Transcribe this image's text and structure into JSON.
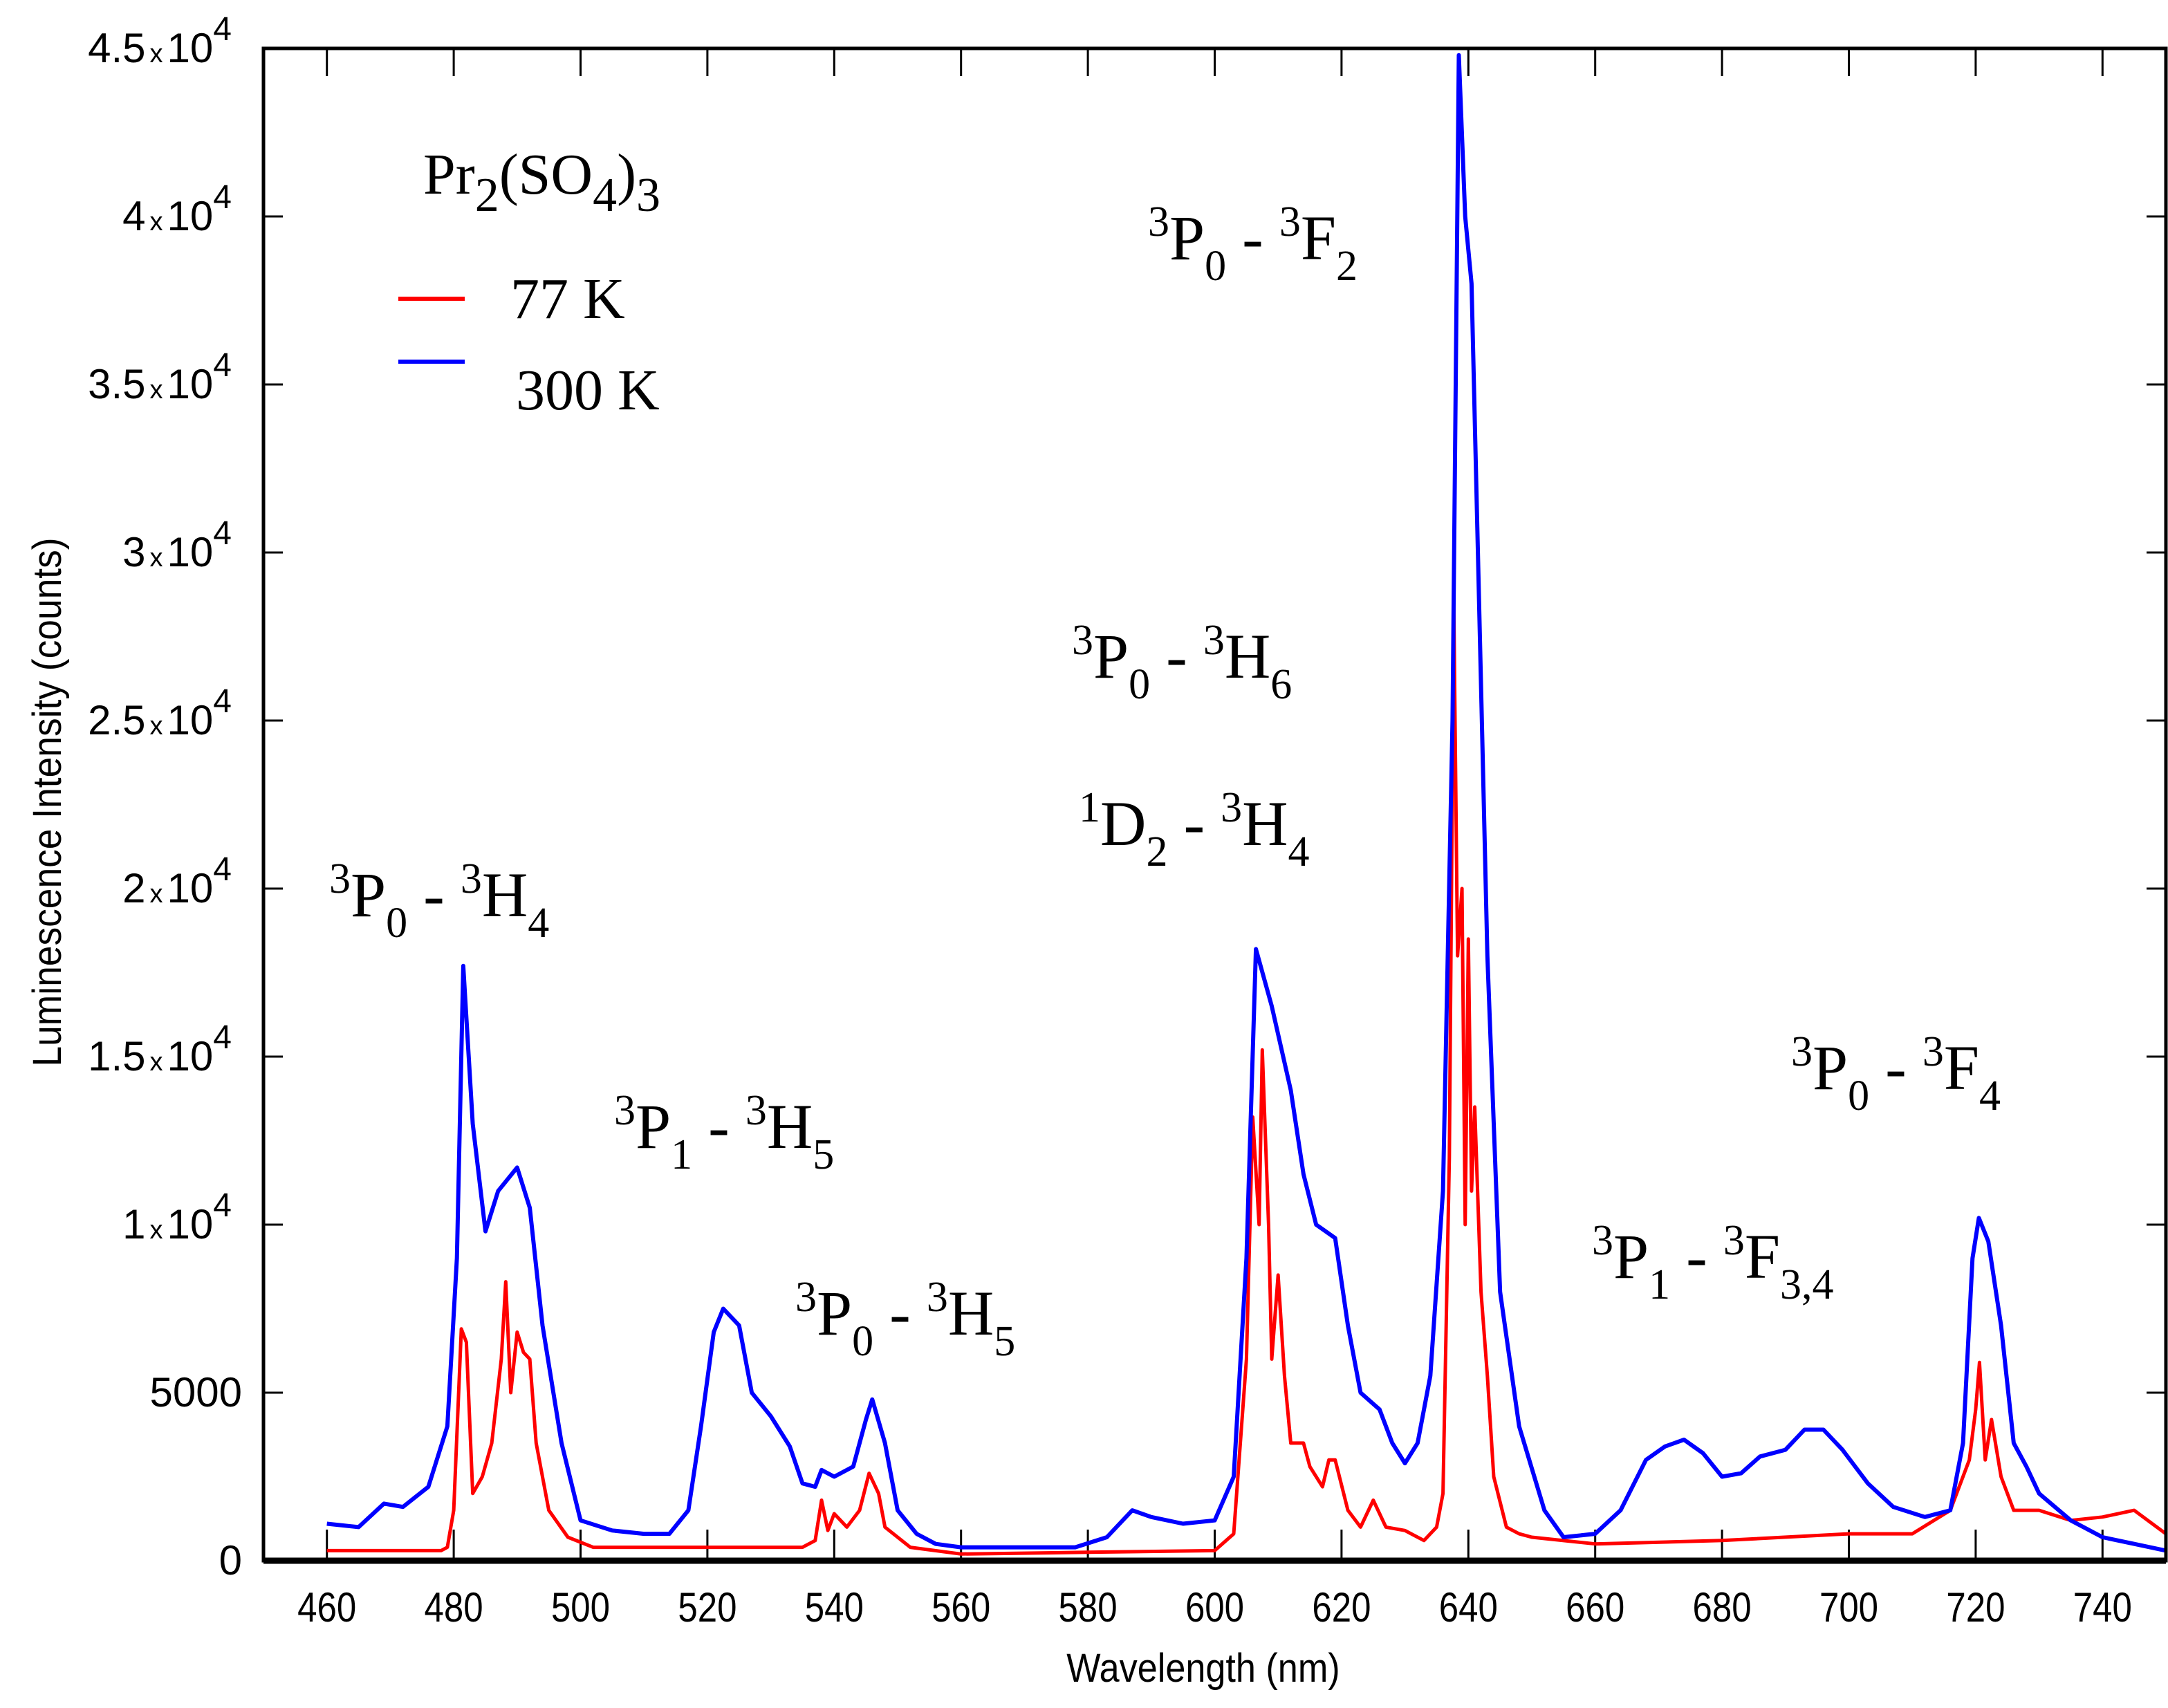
{
  "chart_data": {
    "type": "line",
    "title": "",
    "xlabel": "Wavelength (nm)",
    "ylabel": "Luminescence Intensity (counts)",
    "xlim": [
      450,
      750
    ],
    "ylim": [
      0,
      45000
    ],
    "grid": false,
    "x_ticks": [
      460,
      480,
      500,
      520,
      540,
      560,
      580,
      600,
      620,
      640,
      660,
      680,
      700,
      720,
      740
    ],
    "x_tick_labels": [
      "460",
      "480",
      "500",
      "520",
      "540",
      "560",
      "580",
      "600",
      "620",
      "640",
      "660",
      "680",
      "700",
      "720",
      "740"
    ],
    "y_ticks": [
      0,
      5000,
      10000,
      15000,
      20000,
      25000,
      30000,
      35000,
      40000,
      45000
    ],
    "y_tick_labels": [
      {
        "m": "0"
      },
      {
        "m": "5000"
      },
      {
        "m": "1",
        "x": "x",
        "base": "10",
        "exp": "4"
      },
      {
        "m": "1.5",
        "x": "x",
        "base": "10",
        "exp": "4"
      },
      {
        "m": "2",
        "x": "x",
        "base": "10",
        "exp": "4"
      },
      {
        "m": "2.5",
        "x": "x",
        "base": "10",
        "exp": "4"
      },
      {
        "m": "3",
        "x": "x",
        "base": "10",
        "exp": "4"
      },
      {
        "m": "3.5",
        "x": "x",
        "base": "10",
        "exp": "4"
      },
      {
        "m": "4",
        "x": "x",
        "base": "10",
        "exp": "4"
      },
      {
        "m": "4.5",
        "x": "x",
        "base": "10",
        "exp": "4"
      }
    ],
    "legend": {
      "placement": "top-left",
      "title": {
        "a": "Pr",
        "b": "2",
        "c": "(SO",
        "d": "4",
        "e": ")",
        "f": "3"
      },
      "entries": [
        {
          "name": "77 K",
          "color": "#ff0000"
        },
        {
          "name": "300 K",
          "color": "#0000ff"
        }
      ]
    },
    "series": [
      {
        "name": "300 K",
        "color": "#0000ff",
        "x": [
          460,
          465,
          469,
          472,
          476,
          479,
          480.5,
          481.5,
          483,
          485,
          487,
          490,
          492,
          494,
          497,
          500,
          505,
          510,
          514,
          517,
          519,
          521,
          522.5,
          525,
          527,
          530,
          533,
          535,
          537,
          538,
          540,
          543,
          545,
          546,
          548,
          550,
          553,
          556,
          560,
          570,
          578,
          583,
          587,
          590,
          595,
          600,
          603,
          605,
          606.5,
          609,
          612,
          614,
          616,
          619,
          621,
          623,
          626,
          628,
          630,
          632,
          634,
          636,
          637.5,
          638.5,
          639.5,
          640.5,
          641.5,
          643,
          645,
          648,
          652,
          655,
          660,
          664,
          668,
          671,
          674,
          677,
          680,
          683,
          686,
          690,
          693,
          696,
          699,
          703,
          707,
          712,
          716,
          718,
          719.5,
          720.5,
          722,
          724,
          726,
          728,
          730,
          735,
          740,
          745,
          750
        ],
        "y": [
          1100,
          1000,
          1700,
          1600,
          2200,
          4000,
          9000,
          17700,
          13000,
          9800,
          11000,
          11700,
          10500,
          7000,
          3500,
          1200,
          900,
          800,
          800,
          1500,
          4000,
          6800,
          7500,
          7000,
          5000,
          4300,
          3400,
          2300,
          2200,
          2700,
          2500,
          2800,
          4200,
          4800,
          3500,
          1500,
          800,
          500,
          400,
          400,
          400,
          700,
          1500,
          1300,
          1100,
          1200,
          2500,
          9000,
          18200,
          16500,
          14000,
          11500,
          10000,
          9600,
          7000,
          5000,
          4500,
          3500,
          2900,
          3500,
          5500,
          11000,
          25000,
          44800,
          40000,
          38000,
          30000,
          18000,
          8000,
          4000,
          1500,
          700,
          800,
          1500,
          3000,
          3400,
          3600,
          3200,
          2500,
          2600,
          3100,
          3300,
          3900,
          3900,
          3300,
          2300,
          1600,
          1300,
          1500,
          3500,
          9000,
          10200,
          9500,
          7000,
          3500,
          2800,
          2000,
          1200,
          700,
          500,
          300
        ]
      },
      {
        "name": "77 K",
        "color": "#ff0000",
        "x": [
          460,
          470,
          478,
          479,
          480,
          481.2,
          482,
          483,
          484.5,
          486,
          487.5,
          488.2,
          489,
          490,
          491,
          492,
          493,
          495,
          498,
          502,
          520,
          535,
          537,
          538,
          539,
          540,
          542,
          544,
          545.5,
          547,
          548,
          552,
          560,
          580,
          600,
          603,
          605,
          606,
          607,
          607.5,
          608.5,
          609,
          610,
          611,
          612,
          614,
          615,
          617,
          618,
          619,
          621,
          623,
          625,
          627,
          630,
          633,
          635,
          636,
          637,
          637.7,
          638.3,
          639,
          639.5,
          640,
          640.5,
          641,
          642,
          643,
          644,
          646,
          648,
          650,
          660,
          680,
          700,
          710,
          716,
          719,
          720,
          720.6,
          721.5,
          722.5,
          724,
          726,
          730,
          735,
          740,
          745,
          750
        ],
        "y": [
          300,
          300,
          300,
          400,
          1500,
          6900,
          6500,
          2000,
          2500,
          3500,
          6000,
          8300,
          5000,
          6800,
          6200,
          6000,
          3500,
          1500,
          700,
          400,
          400,
          400,
          600,
          1800,
          900,
          1400,
          1000,
          1500,
          2600,
          2000,
          1000,
          400,
          200,
          250,
          300,
          800,
          6000,
          13200,
          10000,
          15200,
          10000,
          6000,
          8500,
          5500,
          3500,
          3500,
          2800,
          2200,
          3000,
          3000,
          1500,
          1000,
          1800,
          1000,
          900,
          600,
          1000,
          2000,
          12000,
          28500,
          18000,
          20000,
          10000,
          18500,
          11000,
          13500,
          8000,
          5500,
          2500,
          1000,
          800,
          700,
          500,
          600,
          800,
          800,
          1500,
          3000,
          4500,
          5900,
          3000,
          4200,
          2500,
          1500,
          1500,
          1200,
          1300,
          1500,
          800
        ]
      }
    ],
    "annotations": [
      {
        "id": "p0-h4",
        "sup1": "3",
        "t1": "P",
        "sub1": "0",
        "sep": " - ",
        "sup2": "3",
        "t2": "H",
        "sub2": "4"
      },
      {
        "id": "p1-h5",
        "sup1": "3",
        "t1": "P",
        "sub1": "1",
        "sep": " - ",
        "sup2": "3",
        "t2": "H",
        "sub2": "5"
      },
      {
        "id": "p0-h5",
        "sup1": "3",
        "t1": "P",
        "sub1": "0",
        "sep": " - ",
        "sup2": "3",
        "t2": "H",
        "sub2": "5"
      },
      {
        "id": "p0-f2",
        "sup1": "3",
        "t1": "P",
        "sub1": "0",
        "sep": " - ",
        "sup2": "3",
        "t2": "F",
        "sub2": "2"
      },
      {
        "id": "p0-h6",
        "sup1": "3",
        "t1": "P",
        "sub1": "0",
        "sep": " - ",
        "sup2": "3",
        "t2": "H",
        "sub2": "6"
      },
      {
        "id": "d2-h4",
        "sup1": "1",
        "t1": "D",
        "sub1": "2",
        "sep": " - ",
        "sup2": "3",
        "t2": "H",
        "sub2": "4"
      },
      {
        "id": "p1-f34",
        "sup1": "3",
        "t1": "P",
        "sub1": "1",
        "sep": " - ",
        "sup2": "3",
        "t2": "F",
        "sub2": "3,4"
      },
      {
        "id": "p0-f4",
        "sup1": "3",
        "t1": "P",
        "sub1": "0",
        "sep": " - ",
        "sup2": "3",
        "t2": "F",
        "sub2": "4"
      }
    ]
  }
}
